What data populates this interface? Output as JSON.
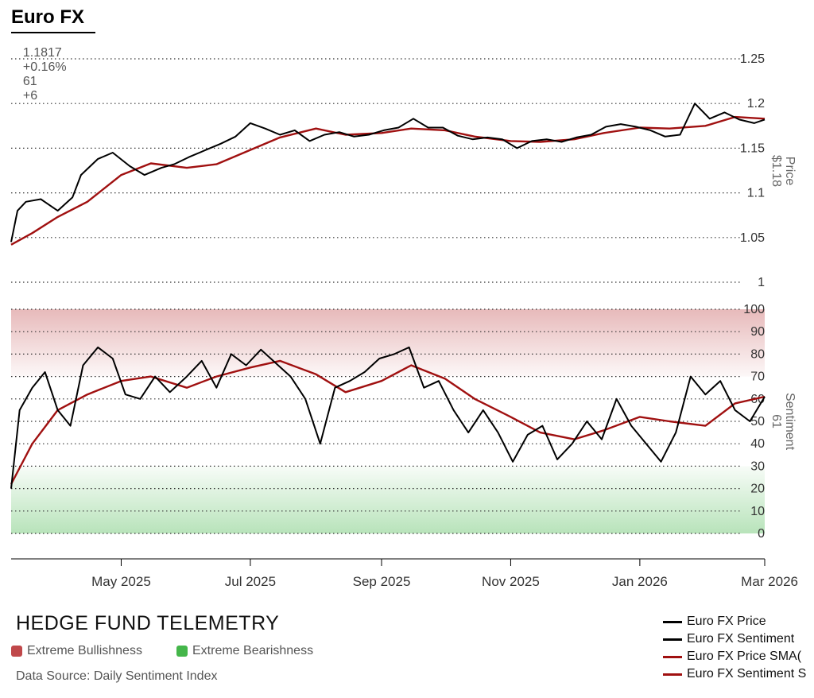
{
  "header": {
    "title": "Euro FX",
    "price": "1.1817",
    "change": "+0.16%",
    "sentiment": "61",
    "sentiment_change": "+6"
  },
  "colors": {
    "price_line": "#000000",
    "sma_line": "#a01010",
    "bullish_zone": "#c0484a",
    "bearish_zone": "#44b64a",
    "grid": "#333333"
  },
  "footer": {
    "brand": "HEDGE FUND TELEMETRY",
    "zone_bullish": "Extreme Bullishness",
    "zone_bearish": "Extreme Bearishness",
    "source": "Data Source: Daily Sentiment Index"
  },
  "legend": [
    {
      "label": "Euro FX Price",
      "color": "#000000"
    },
    {
      "label": "Euro FX Sentiment",
      "color": "#000000"
    },
    {
      "label": "Euro FX Price SMA(",
      "color": "#a01010"
    },
    {
      "label": "Euro FX Sentiment S",
      "color": "#a01010"
    }
  ],
  "chart_data": {
    "type": "line",
    "x_ticks": [
      "May 2025",
      "Jul 2025",
      "Sep 2025",
      "Nov 2025",
      "Jan 2026",
      "Mar 2026"
    ],
    "x_tick_dates": [
      "2025-05-01",
      "2025-07-01",
      "2025-09-01",
      "2025-11-01",
      "2026-01-01",
      "2026-03-01"
    ],
    "x_range": [
      "2025-03-10",
      "2026-03-01"
    ],
    "price_panel": {
      "axis_label": "Price",
      "axis_value_label": "$1.18",
      "ylim": [
        1.0,
        1.25
      ],
      "y_ticks": [
        "1",
        "1.05",
        "1.1",
        "1.15",
        "1.2",
        "1.25"
      ],
      "series": [
        {
          "name": "Euro FX Price",
          "points": [
            [
              "2025-03-10",
              1.045
            ],
            [
              "2025-03-13",
              1.08
            ],
            [
              "2025-03-17",
              1.09
            ],
            [
              "2025-03-24",
              1.093
            ],
            [
              "2025-04-01",
              1.08
            ],
            [
              "2025-04-08",
              1.095
            ],
            [
              "2025-04-12",
              1.12
            ],
            [
              "2025-04-20",
              1.138
            ],
            [
              "2025-04-27",
              1.145
            ],
            [
              "2025-05-05",
              1.13
            ],
            [
              "2025-05-12",
              1.12
            ],
            [
              "2025-05-20",
              1.128
            ],
            [
              "2025-05-26",
              1.132
            ],
            [
              "2025-06-02",
              1.14
            ],
            [
              "2025-06-10",
              1.148
            ],
            [
              "2025-06-17",
              1.155
            ],
            [
              "2025-06-24",
              1.163
            ],
            [
              "2025-07-01",
              1.178
            ],
            [
              "2025-07-08",
              1.172
            ],
            [
              "2025-07-15",
              1.165
            ],
            [
              "2025-07-22",
              1.17
            ],
            [
              "2025-07-29",
              1.158
            ],
            [
              "2025-08-05",
              1.165
            ],
            [
              "2025-08-12",
              1.168
            ],
            [
              "2025-08-19",
              1.163
            ],
            [
              "2025-08-26",
              1.165
            ],
            [
              "2025-09-02",
              1.17
            ],
            [
              "2025-09-09",
              1.173
            ],
            [
              "2025-09-16",
              1.183
            ],
            [
              "2025-09-23",
              1.173
            ],
            [
              "2025-09-30",
              1.173
            ],
            [
              "2025-10-07",
              1.164
            ],
            [
              "2025-10-14",
              1.16
            ],
            [
              "2025-10-21",
              1.162
            ],
            [
              "2025-10-28",
              1.16
            ],
            [
              "2025-11-04",
              1.15
            ],
            [
              "2025-11-11",
              1.158
            ],
            [
              "2025-11-18",
              1.16
            ],
            [
              "2025-11-25",
              1.157
            ],
            [
              "2025-12-02",
              1.162
            ],
            [
              "2025-12-09",
              1.165
            ],
            [
              "2025-12-16",
              1.174
            ],
            [
              "2025-12-23",
              1.177
            ],
            [
              "2025-12-30",
              1.174
            ],
            [
              "2026-01-06",
              1.17
            ],
            [
              "2026-01-13",
              1.163
            ],
            [
              "2026-01-20",
              1.165
            ],
            [
              "2026-01-27",
              1.2
            ],
            [
              "2026-02-03",
              1.183
            ],
            [
              "2026-02-10",
              1.19
            ],
            [
              "2026-02-17",
              1.182
            ],
            [
              "2026-02-24",
              1.178
            ],
            [
              "2026-03-01",
              1.182
            ]
          ]
        },
        {
          "name": "Euro FX Price SMA(",
          "points": [
            [
              "2025-03-10",
              1.042
            ],
            [
              "2025-03-20",
              1.055
            ],
            [
              "2025-04-01",
              1.073
            ],
            [
              "2025-04-15",
              1.09
            ],
            [
              "2025-05-01",
              1.12
            ],
            [
              "2025-05-15",
              1.133
            ],
            [
              "2025-06-01",
              1.128
            ],
            [
              "2025-06-15",
              1.132
            ],
            [
              "2025-07-01",
              1.148
            ],
            [
              "2025-07-15",
              1.162
            ],
            [
              "2025-08-01",
              1.172
            ],
            [
              "2025-08-15",
              1.165
            ],
            [
              "2025-09-01",
              1.167
            ],
            [
              "2025-09-15",
              1.172
            ],
            [
              "2025-10-01",
              1.17
            ],
            [
              "2025-10-15",
              1.163
            ],
            [
              "2025-11-01",
              1.158
            ],
            [
              "2025-11-15",
              1.157
            ],
            [
              "2025-12-01",
              1.16
            ],
            [
              "2025-12-15",
              1.167
            ],
            [
              "2026-01-01",
              1.173
            ],
            [
              "2026-01-15",
              1.172
            ],
            [
              "2026-02-01",
              1.175
            ],
            [
              "2026-02-15",
              1.185
            ],
            [
              "2026-03-01",
              1.183
            ]
          ]
        }
      ]
    },
    "sentiment_panel": {
      "axis_label": "Sentiment",
      "axis_value_label": "61",
      "ylim": [
        0,
        100
      ],
      "y_ticks": [
        "0",
        "10",
        "20",
        "30",
        "40",
        "50",
        "60",
        "70",
        "80",
        "90",
        "100"
      ],
      "zones": [
        {
          "name": "Extreme Bullishness",
          "from": 70,
          "to": 100
        },
        {
          "name": "Extreme Bearishness",
          "from": 0,
          "to": 30
        }
      ],
      "series": [
        {
          "name": "Euro FX Sentiment",
          "points": [
            [
              "2025-03-10",
              20
            ],
            [
              "2025-03-14",
              55
            ],
            [
              "2025-03-20",
              65
            ],
            [
              "2025-03-26",
              72
            ],
            [
              "2025-04-01",
              55
            ],
            [
              "2025-04-07",
              48
            ],
            [
              "2025-04-13",
              75
            ],
            [
              "2025-04-20",
              83
            ],
            [
              "2025-04-27",
              78
            ],
            [
              "2025-05-03",
              62
            ],
            [
              "2025-05-10",
              60
            ],
            [
              "2025-05-17",
              70
            ],
            [
              "2025-05-24",
              63
            ],
            [
              "2025-06-01",
              70
            ],
            [
              "2025-06-08",
              77
            ],
            [
              "2025-06-15",
              65
            ],
            [
              "2025-06-22",
              80
            ],
            [
              "2025-06-29",
              75
            ],
            [
              "2025-07-06",
              82
            ],
            [
              "2025-07-13",
              76
            ],
            [
              "2025-07-20",
              70
            ],
            [
              "2025-07-27",
              60
            ],
            [
              "2025-08-03",
              40
            ],
            [
              "2025-08-10",
              65
            ],
            [
              "2025-08-17",
              68
            ],
            [
              "2025-08-24",
              72
            ],
            [
              "2025-08-31",
              78
            ],
            [
              "2025-09-07",
              80
            ],
            [
              "2025-09-14",
              83
            ],
            [
              "2025-09-21",
              65
            ],
            [
              "2025-09-28",
              68
            ],
            [
              "2025-10-05",
              55
            ],
            [
              "2025-10-12",
              45
            ],
            [
              "2025-10-19",
              55
            ],
            [
              "2025-10-26",
              45
            ],
            [
              "2025-11-02",
              32
            ],
            [
              "2025-11-09",
              44
            ],
            [
              "2025-11-16",
              48
            ],
            [
              "2025-11-23",
              33
            ],
            [
              "2025-11-30",
              40
            ],
            [
              "2025-12-07",
              50
            ],
            [
              "2025-12-14",
              42
            ],
            [
              "2025-12-21",
              60
            ],
            [
              "2025-12-28",
              48
            ],
            [
              "2026-01-04",
              40
            ],
            [
              "2026-01-11",
              32
            ],
            [
              "2026-01-18",
              45
            ],
            [
              "2026-01-25",
              70
            ],
            [
              "2026-02-01",
              62
            ],
            [
              "2026-02-08",
              68
            ],
            [
              "2026-02-15",
              55
            ],
            [
              "2026-02-22",
              50
            ],
            [
              "2026-03-01",
              61
            ]
          ]
        },
        {
          "name": "Euro FX Sentiment S",
          "points": [
            [
              "2025-03-10",
              22
            ],
            [
              "2025-03-20",
              40
            ],
            [
              "2025-04-01",
              55
            ],
            [
              "2025-04-15",
              62
            ],
            [
              "2025-05-01",
              68
            ],
            [
              "2025-05-15",
              70
            ],
            [
              "2025-06-01",
              65
            ],
            [
              "2025-06-15",
              70
            ],
            [
              "2025-07-01",
              74
            ],
            [
              "2025-07-15",
              77
            ],
            [
              "2025-08-01",
              71
            ],
            [
              "2025-08-15",
              63
            ],
            [
              "2025-09-01",
              68
            ],
            [
              "2025-09-15",
              75
            ],
            [
              "2025-10-01",
              69
            ],
            [
              "2025-10-15",
              60
            ],
            [
              "2025-11-01",
              52
            ],
            [
              "2025-11-15",
              45
            ],
            [
              "2025-12-01",
              42
            ],
            [
              "2025-12-15",
              46
            ],
            [
              "2026-01-01",
              52
            ],
            [
              "2026-01-15",
              50
            ],
            [
              "2026-02-01",
              48
            ],
            [
              "2026-02-15",
              58
            ],
            [
              "2026-03-01",
              61
            ]
          ]
        }
      ]
    }
  }
}
